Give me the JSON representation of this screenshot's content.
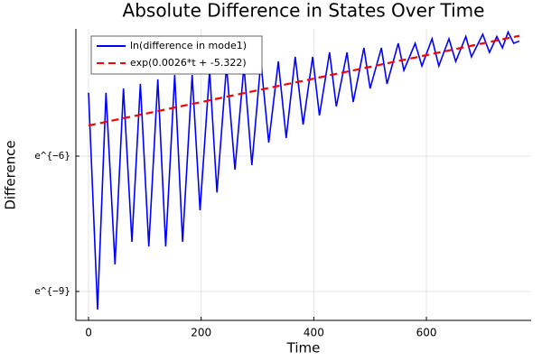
{
  "chart_data": {
    "type": "line",
    "title": "Absolute Difference in States Over Time",
    "x_label": "Time",
    "y_label": "Difference",
    "xlim": [
      -22.5,
      786
    ],
    "xticks": [
      0,
      200,
      400,
      600
    ],
    "ylim": [
      6.5e-05,
      0.0416
    ],
    "log_y": true,
    "yticks": [
      {
        "value": 0.00247875,
        "label": "e^{−6}"
      },
      {
        "value": 0.00012341,
        "label": "e^{−9}"
      }
    ],
    "grid": true,
    "legend": "top-left",
    "series": [
      {
        "name": "ln(difference in mode1)",
        "color": "#0000ff",
        "dash": false,
        "x": [
          0,
          16,
          31,
          47,
          62,
          77,
          92,
          107,
          123,
          137,
          153,
          167,
          184,
          198,
          215,
          228,
          245,
          260,
          276,
          290,
          306,
          320,
          337,
          351,
          367,
          381,
          398,
          410,
          428,
          440,
          459,
          470,
          489,
          500,
          520,
          530,
          550,
          560,
          580,
          592,
          610,
          622,
          640,
          652,
          670,
          680,
          700,
          712,
          725,
          735,
          745,
          755,
          765
        ],
        "values": [
          0.0101,
          8.27e-05,
          0.0101,
          0.000225,
          0.0111,
          0.000371,
          0.0123,
          0.000335,
          0.0136,
          0.000335,
          0.015,
          0.000371,
          0.015,
          0.000747,
          0.0166,
          0.00111,
          0.0183,
          0.00184,
          0.0183,
          0.00203,
          0.0202,
          0.00335,
          0.0202,
          0.0037,
          0.0224,
          0.00499,
          0.0224,
          0.0061,
          0.0247,
          0.00745,
          0.0247,
          0.00823,
          0.0273,
          0.0111,
          0.0273,
          0.0123,
          0.0302,
          0.0166,
          0.0302,
          0.0183,
          0.0334,
          0.0183,
          0.0334,
          0.0202,
          0.0351,
          0.0224,
          0.0369,
          0.0247,
          0.0351,
          0.0273,
          0.0388,
          0.0302,
          0.0318
        ]
      },
      {
        "name": "exp(0.0026*t + -5.322)",
        "color": "#ff0000",
        "dash": true,
        "x": [
          0,
          765
        ],
        "values": [
          0.004886,
          0.0357
        ]
      }
    ]
  }
}
